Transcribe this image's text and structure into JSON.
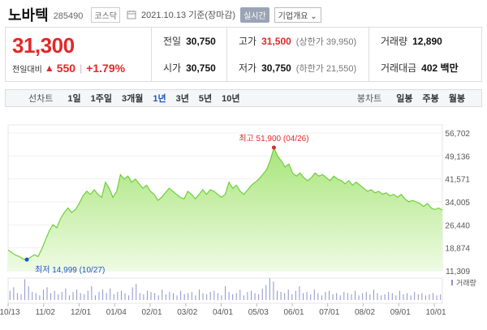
{
  "stock": {
    "name": "노바텍",
    "code": "285490",
    "market": "코스닥",
    "date": "2021.10.13 기준(장마감)",
    "realtime": "실시간",
    "overview": "기업개요"
  },
  "price": {
    "current": "31,300",
    "change_label": "전일대비",
    "change_arrow": "▲",
    "change": "550",
    "separator": "|",
    "change_rate": "+1.79%"
  },
  "stats": {
    "prev_label": "전일",
    "prev": "30,750",
    "high_label": "고가",
    "high": "31,500",
    "upper_limit": "(상한가 39,950)",
    "volume_label": "거래량",
    "volume": "12,890",
    "open_label": "시가",
    "open": "30,750",
    "low_label": "저가",
    "low": "30,750",
    "lower_limit": "(하한가 21,550)",
    "amount_label": "거래대금",
    "amount": "402 백만"
  },
  "tabs": {
    "line_chart": "선차트",
    "periods": [
      "1일",
      "1주일",
      "3개월",
      "1년",
      "3년",
      "5년",
      "10년"
    ],
    "selected_period": "1년",
    "candle_chart": "봉차트",
    "candles": [
      "일봉",
      "주봉",
      "월봉"
    ]
  },
  "colors": {
    "up": "#e22828",
    "line": "#6fcf3c",
    "fill": "#d9f5c4",
    "accent": "#1e56c6"
  },
  "chart_data": {
    "type": "area",
    "y_ticks": [
      "56,702",
      "49,136",
      "41,571",
      "34,005",
      "26,440",
      "18,874",
      "11,309"
    ],
    "ylim": [
      11309,
      56702
    ],
    "x_ticks": [
      "10/13",
      "11/02",
      "12/01",
      "01/04",
      "02/01",
      "03/02",
      "04/01",
      "05/03",
      "06/01",
      "07/01",
      "08/02",
      "09/01",
      "10/01"
    ],
    "values": [
      18200,
      17300,
      16500,
      16000,
      15200,
      14999,
      15800,
      16600,
      16000,
      18500,
      21500,
      24500,
      26500,
      25500,
      28500,
      30500,
      32000,
      30500,
      31500,
      33500,
      36000,
      37500,
      36500,
      38000,
      36500,
      35500,
      40500,
      38500,
      35500,
      37500,
      43000,
      41500,
      42500,
      40500,
      41500,
      40000,
      38500,
      39500,
      37500,
      36500,
      34500,
      35500,
      37000,
      38500,
      37500,
      36500,
      35500,
      35000,
      37500,
      36500,
      35000,
      36500,
      38000,
      36500,
      38000,
      37500,
      36500,
      35500,
      36500,
      40500,
      38500,
      39500,
      37500,
      36500,
      38000,
      39500,
      40500,
      41500,
      43000,
      44500,
      47500,
      51900,
      49000,
      47500,
      45500,
      46500,
      43500,
      42500,
      43500,
      42000,
      41000,
      42000,
      43500,
      42500,
      43000,
      42000,
      41000,
      42500,
      41500,
      41000,
      40000,
      41000,
      39500,
      40500,
      39500,
      38500,
      37500,
      38000,
      37000,
      37500,
      36500,
      37000,
      36000,
      36500,
      35500,
      36500,
      35000,
      34000,
      34500,
      34000,
      33500,
      32500,
      33500,
      32000,
      31500,
      32000,
      31300
    ],
    "max_label": "최고 51,900 (04/26)",
    "min_label": "최저 14,999 (10/27)",
    "volume_label": "거래량",
    "volume": [
      40,
      55,
      30,
      25,
      90,
      60,
      35,
      30,
      20,
      45,
      55,
      30,
      40,
      25,
      35,
      50,
      20,
      35,
      45,
      30,
      25,
      40,
      60,
      20,
      35,
      45,
      30,
      50,
      25,
      35,
      40,
      30,
      20,
      55,
      70,
      30,
      25,
      40,
      35,
      30,
      20,
      45,
      25,
      35,
      30,
      20,
      40,
      25,
      30,
      35,
      20,
      45,
      30,
      25,
      35,
      40,
      30,
      20,
      60,
      35,
      25,
      30,
      45,
      20,
      35,
      40,
      30,
      25,
      50,
      65,
      95,
      80,
      40,
      35,
      30,
      45,
      25,
      40,
      60,
      30,
      35,
      25,
      45,
      30,
      20,
      35,
      40,
      25,
      30,
      20,
      35,
      30,
      25,
      40,
      20,
      30,
      35,
      25,
      45,
      30,
      20,
      25,
      35,
      30,
      20,
      40,
      25,
      30,
      20,
      35,
      25,
      30,
      20,
      25,
      30,
      20,
      25
    ]
  }
}
